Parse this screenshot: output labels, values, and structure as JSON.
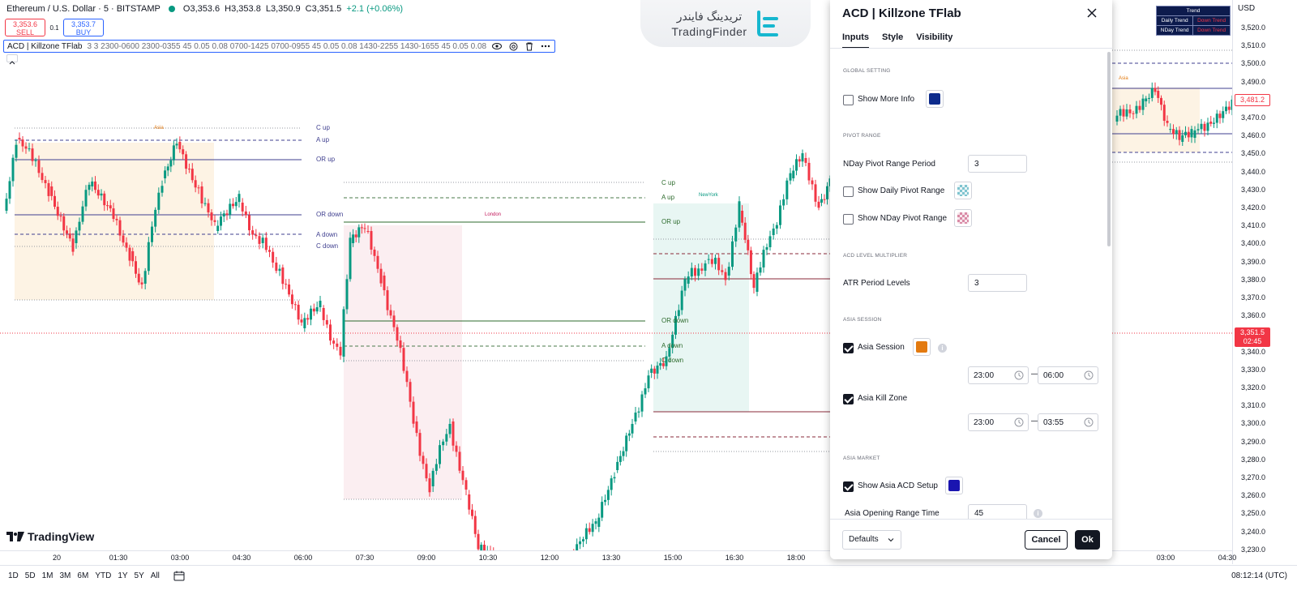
{
  "header": {
    "symbol": "Ethereum / U.S. Dollar · 5 · BITSTAMP",
    "open": "O3,353.6",
    "high": "H3,353.8",
    "low": "L3,350.9",
    "close": "C3,351.5",
    "change": "+2.1 (+0.06%)",
    "sell_price": "3,353.6",
    "sell_label": "SELL",
    "spread": "0.1",
    "buy_price": "3,353.7",
    "buy_label": "BUY"
  },
  "indicator_legend": {
    "name": "ACD | Killzone TFlab",
    "params": "3 3 2300-0600 2300-0355 45 0.05 0.08 0700-1425 0700-0955 45 0.05 0.08 1430-2255 1430-1655 45 0.05 0.08"
  },
  "watermark": {
    "persian": "تریدینگ فایندر",
    "english": "TradingFinder"
  },
  "brand": {
    "tradingview": "TradingView"
  },
  "chart_labels": {
    "asia": "Asia",
    "london": "London",
    "newyork": "NewYork",
    "c_up": "C up",
    "a_up": "A up",
    "or_up": "OR up",
    "or_down": "OR down",
    "a_down": "A down",
    "c_down": "C down"
  },
  "trend_table": {
    "header": "Trend",
    "rows": [
      {
        "label": "Daily Trend",
        "value": "Down Trend"
      },
      {
        "label": "NDay Trend",
        "value": "Down Trend"
      }
    ]
  },
  "price_axis": {
    "currency": "USD",
    "ticks": [
      "3,520.0",
      "3,510.0",
      "3,500.0",
      "3,490.0",
      "3,480.0",
      "3,470.0",
      "3,460.0",
      "3,450.0",
      "3,440.0",
      "3,430.0",
      "3,420.0",
      "3,410.0",
      "3,400.0",
      "3,390.0",
      "3,380.0",
      "3,370.0",
      "3,360.0",
      "3,350.0",
      "3,340.0",
      "3,330.0",
      "3,320.0",
      "3,310.0",
      "3,300.0",
      "3,290.0",
      "3,280.0",
      "3,270.0",
      "3,260.0",
      "3,250.0",
      "3,240.0",
      "3,230.0"
    ],
    "last_price": "3,351.5",
    "countdown": "02:45",
    "marker_price": "3,481.2"
  },
  "time_axis": {
    "ticks": [
      "20",
      "01:30",
      "03:00",
      "04:30",
      "06:00",
      "07:30",
      "09:00",
      "10:30",
      "12:00",
      "13:30",
      "15:00",
      "16:30",
      "18:00",
      "03:00",
      "04:30"
    ]
  },
  "bottom_bar": {
    "ranges": [
      "1D",
      "5D",
      "1M",
      "3M",
      "6M",
      "YTD",
      "1Y",
      "5Y",
      "All"
    ],
    "clock": "08:12:14 (UTC)"
  },
  "dialog": {
    "title": "ACD | Killzone TFlab",
    "tabs": [
      "Inputs",
      "Style",
      "Visibility"
    ],
    "sections": {
      "global": "GLOBAL SETTING",
      "pivot": "PIVOT RANGE",
      "acd": "ACD LEVEL MULTIPLIER",
      "asia_session": "ASIA SESSION",
      "asia_market": "ASIA MARKET"
    },
    "show_more_info": "Show More Info",
    "nday_pivot_period_label": "NDay Pivot Range Period",
    "nday_pivot_period_value": "3",
    "show_daily_pivot": "Show Daily Pivot Range",
    "show_nday_pivot": "Show NDay Pivot Range",
    "atr_label": "ATR Period Levels",
    "atr_value": "3",
    "asia_session_label": "Asia Session",
    "asia_session_start": "23:00",
    "asia_session_end": "06:00",
    "asia_killzone_label": "Asia Kill Zone",
    "asia_killzone_start": "23:00",
    "asia_killzone_end": "03:55",
    "show_asia_acd": "Show Asia ACD Setup",
    "asia_or_time_label": "Asia Opening Range Time",
    "asia_or_time_value": "45",
    "defaults": "Defaults",
    "cancel": "Cancel",
    "ok": "Ok"
  },
  "colors": {
    "bull": "#089981",
    "bear": "#f23645",
    "asia_fill": "#fdf3e4",
    "london_fill": "#fbeef1",
    "newyork_fill": "#e8f6f3",
    "more_info_color": "#0d2b8c",
    "asia_session_color": "#e37a10",
    "asia_acd_color": "#1a14b0"
  }
}
